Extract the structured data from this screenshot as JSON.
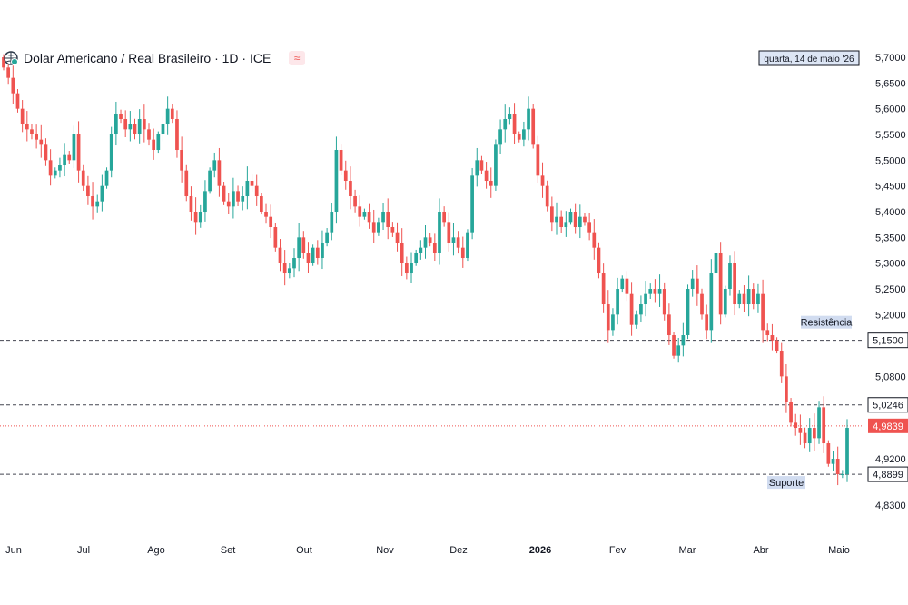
{
  "header": {
    "title": "Dolar Americano / Real Brasileiro · 1D · ICE",
    "wave_symbol": "≈",
    "date_label": "quarta, 14 de maio '26"
  },
  "colors": {
    "up": "#26a69a",
    "down": "#ef5350",
    "grid": "#f0f3fa",
    "dashed": "#434651",
    "price_line": "#ef5350",
    "label_bg": "#d1dcf0"
  },
  "chart_data": {
    "type": "candlestick",
    "pair": "USD/BRL",
    "interval": "1D",
    "source": "ICE",
    "yaxis_ticks": [
      "5,7000",
      "5,6500",
      "5,6000",
      "5,5500",
      "5,5000",
      "5,4500",
      "5,4000",
      "5,3500",
      "5,3000",
      "5,2500",
      "5,2000",
      "5,0800",
      "4,9200",
      "4,8300"
    ],
    "ylim": [
      4.8,
      5.73
    ],
    "xaxis_ticks": [
      {
        "label": "Jun",
        "bold": false
      },
      {
        "label": "Jul",
        "bold": false
      },
      {
        "label": "Ago",
        "bold": false
      },
      {
        "label": "Set",
        "bold": false
      },
      {
        "label": "Out",
        "bold": false
      },
      {
        "label": "Nov",
        "bold": false
      },
      {
        "label": "Dez",
        "bold": false
      },
      {
        "label": "2026",
        "bold": true
      },
      {
        "label": "Fev",
        "bold": false
      },
      {
        "label": "Mar",
        "bold": false
      },
      {
        "label": "Abr",
        "bold": false
      },
      {
        "label": "Maio",
        "bold": false
      }
    ],
    "levels": [
      {
        "name": "Resistência",
        "value": 5.15,
        "label": "5,1500"
      },
      {
        "name": "",
        "value": 5.0246,
        "label": "5,0246"
      },
      {
        "name": "Suporte",
        "value": 4.8899,
        "label": "4,8899"
      }
    ],
    "current_price": {
      "value": 4.9839,
      "label": "4,9839"
    },
    "closes": [
      5.68,
      5.66,
      5.63,
      5.6,
      5.57,
      5.56,
      5.55,
      5.54,
      5.53,
      5.5,
      5.47,
      5.48,
      5.49,
      5.51,
      5.5,
      5.55,
      5.48,
      5.45,
      5.43,
      5.41,
      5.42,
      5.45,
      5.48,
      5.55,
      5.59,
      5.58,
      5.56,
      5.57,
      5.55,
      5.58,
      5.56,
      5.54,
      5.52,
      5.55,
      5.57,
      5.6,
      5.58,
      5.52,
      5.48,
      5.43,
      5.4,
      5.38,
      5.4,
      5.44,
      5.48,
      5.5,
      5.45,
      5.42,
      5.41,
      5.44,
      5.42,
      5.43,
      5.46,
      5.45,
      5.43,
      5.4,
      5.39,
      5.37,
      5.33,
      5.3,
      5.28,
      5.29,
      5.31,
      5.35,
      5.32,
      5.3,
      5.33,
      5.31,
      5.34,
      5.36,
      5.4,
      5.52,
      5.48,
      5.46,
      5.43,
      5.41,
      5.39,
      5.4,
      5.38,
      5.36,
      5.38,
      5.4,
      5.37,
      5.36,
      5.34,
      5.3,
      5.28,
      5.3,
      5.32,
      5.33,
      5.35,
      5.34,
      5.32,
      5.4,
      5.38,
      5.34,
      5.35,
      5.33,
      5.31,
      5.36,
      5.47,
      5.5,
      5.48,
      5.46,
      5.45,
      5.53,
      5.56,
      5.58,
      5.59,
      5.55,
      5.54,
      5.56,
      5.6,
      5.53,
      5.47,
      5.45,
      5.41,
      5.38,
      5.39,
      5.37,
      5.38,
      5.4,
      5.37,
      5.39,
      5.38,
      5.36,
      5.33,
      5.28,
      5.22,
      5.17,
      5.2,
      5.25,
      5.27,
      5.24,
      5.18,
      5.2,
      5.22,
      5.24,
      5.25,
      5.24,
      5.25,
      5.2,
      5.16,
      5.12,
      5.14,
      5.16,
      5.25,
      5.27,
      5.24,
      5.2,
      5.17,
      5.28,
      5.32,
      5.2,
      5.25,
      5.3,
      5.22,
      5.24,
      5.22,
      5.25,
      5.22,
      5.24,
      5.17,
      5.16,
      5.15,
      5.13,
      5.08,
      5.03,
      4.99,
      4.98,
      4.97,
      4.95,
      4.98,
      4.96,
      5.02,
      4.95,
      4.91,
      4.92,
      4.89,
      4.89,
      4.98
    ],
    "start_open": 5.7
  },
  "watermark": ""
}
